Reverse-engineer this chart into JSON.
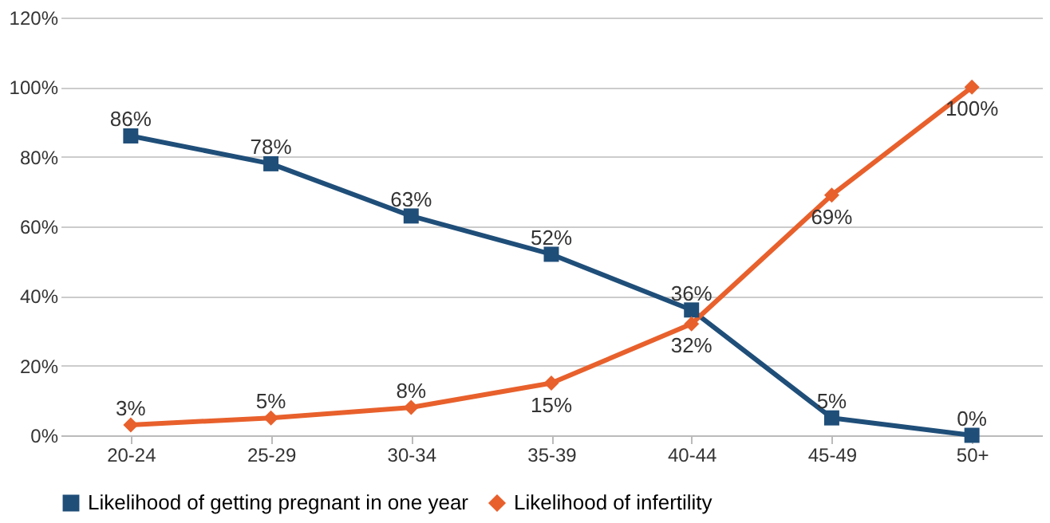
{
  "chart_data": {
    "type": "line",
    "categories": [
      "20-24",
      "25-29",
      "30-34",
      "35-39",
      "40-44",
      "45-49",
      "50+"
    ],
    "ylim": [
      0,
      120
    ],
    "yticks": [
      {
        "value": 0,
        "label": "0%"
      },
      {
        "value": 20,
        "label": "20%"
      },
      {
        "value": 40,
        "label": "40%"
      },
      {
        "value": 60,
        "label": "60%"
      },
      {
        "value": 80,
        "label": "80%"
      },
      {
        "value": 100,
        "label": "100%"
      },
      {
        "value": 120,
        "label": "120%"
      }
    ],
    "grid": "y",
    "legend": "bottom",
    "series": [
      {
        "name": "Likelihood of getting pregnant in one year",
        "color": "#1f4e79",
        "marker": "square",
        "values": [
          86,
          78,
          63,
          52,
          36,
          5,
          0
        ],
        "value_labels": [
          "86%",
          "78%",
          "63%",
          "52%",
          "36%",
          "5%",
          "0%"
        ]
      },
      {
        "name": "Likelihood of infertility",
        "color": "#e8602c",
        "marker": "diamond",
        "values": [
          3,
          5,
          8,
          15,
          32,
          69,
          100
        ],
        "value_labels": [
          "3%",
          "5%",
          "8%",
          "15%",
          "32%",
          "69%",
          "100%"
        ]
      }
    ]
  }
}
